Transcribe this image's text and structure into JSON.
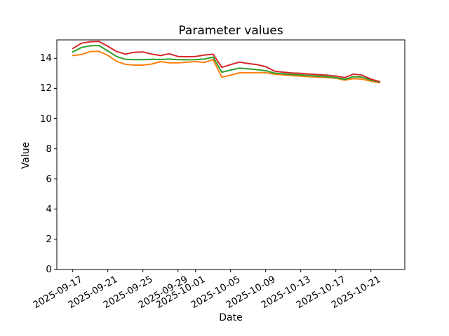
{
  "chart_data": {
    "type": "line",
    "title": "Parameter values",
    "xlabel": "Date",
    "ylabel": "Value",
    "grid": false,
    "legend_position": "none",
    "ylim": [
      0,
      15.22
    ],
    "x_dates": [
      "2025-09-17",
      "2025-09-18",
      "2025-09-19",
      "2025-09-20",
      "2025-09-21",
      "2025-09-22",
      "2025-09-23",
      "2025-09-24",
      "2025-09-25",
      "2025-09-26",
      "2025-09-27",
      "2025-09-28",
      "2025-09-29",
      "2025-09-30",
      "2025-10-01",
      "2025-10-02",
      "2025-10-03",
      "2025-10-04",
      "2025-10-05",
      "2025-10-06",
      "2025-10-07",
      "2025-10-08",
      "2025-10-09",
      "2025-10-10",
      "2025-10-11",
      "2025-10-12",
      "2025-10-13",
      "2025-10-14",
      "2025-10-15",
      "2025-10-16",
      "2025-10-17",
      "2025-10-18",
      "2025-10-19",
      "2025-10-20",
      "2025-10-21",
      "2025-10-22"
    ],
    "series": [
      {
        "id": "orange",
        "color": "#ff7f0e",
        "values": [
          14.18,
          14.25,
          14.45,
          14.46,
          14.2,
          13.8,
          13.6,
          13.55,
          13.55,
          13.62,
          13.78,
          13.7,
          13.7,
          13.74,
          13.78,
          13.72,
          13.92,
          12.75,
          12.88,
          13.04,
          13.04,
          13.05,
          13.05,
          12.95,
          12.9,
          12.85,
          12.82,
          12.78,
          12.75,
          12.72,
          12.68,
          12.55,
          12.65,
          12.62,
          12.48,
          12.38
        ]
      },
      {
        "id": "green",
        "color": "#2ca02c",
        "values": [
          14.42,
          14.72,
          14.83,
          14.85,
          14.48,
          14.12,
          13.93,
          13.91,
          13.91,
          13.93,
          13.92,
          13.95,
          13.91,
          13.9,
          13.91,
          13.95,
          14.08,
          13.08,
          13.22,
          13.35,
          13.3,
          13.25,
          13.18,
          13.02,
          12.97,
          12.93,
          12.9,
          12.85,
          12.82,
          12.78,
          12.72,
          12.6,
          12.78,
          12.75,
          12.55,
          12.42
        ]
      },
      {
        "id": "red",
        "color": "#d62728",
        "values": [
          14.65,
          15.0,
          15.1,
          15.12,
          14.8,
          14.45,
          14.28,
          14.4,
          14.42,
          14.28,
          14.18,
          14.3,
          14.12,
          14.1,
          14.12,
          14.22,
          14.27,
          13.4,
          13.58,
          13.75,
          13.65,
          13.58,
          13.45,
          13.15,
          13.08,
          13.03,
          13.0,
          12.95,
          12.92,
          12.88,
          12.82,
          12.72,
          12.95,
          12.88,
          12.62,
          12.45
        ]
      }
    ],
    "xticks": {
      "day_offsets": [
        0,
        4,
        8,
        12,
        14,
        18,
        22,
        26,
        30,
        34
      ],
      "labels": [
        "2025-09-17",
        "2025-09-21",
        "2025-09-25",
        "2025-09-29",
        "2025-10-01",
        "2025-10-05",
        "2025-10-09",
        "2025-10-13",
        "2025-10-17",
        "2025-10-21"
      ]
    },
    "yticks": {
      "values": [
        0,
        2,
        4,
        6,
        8,
        10,
        12,
        14
      ],
      "labels": [
        "0",
        "2",
        "4",
        "6",
        "8",
        "10",
        "12",
        "14"
      ]
    },
    "axis_color": "#000000",
    "background_color": "#ffffff"
  }
}
